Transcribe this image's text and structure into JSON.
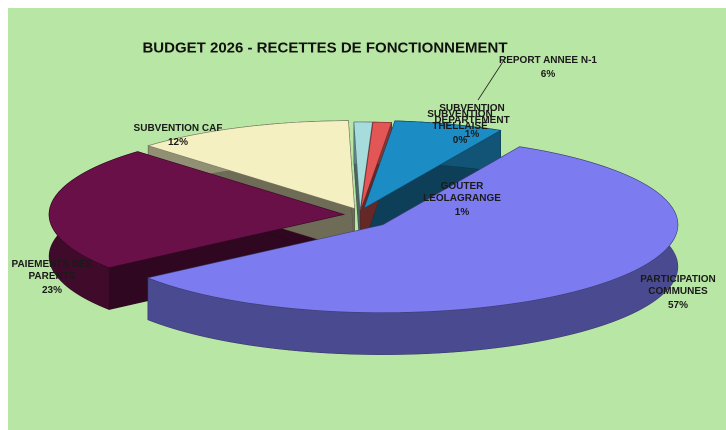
{
  "chart_data": {
    "type": "pie",
    "title": "BUDGET 2026  -  RECETTES DE FONCTIONNEMENT",
    "categories": [
      "REPORT ANNEE N-1",
      "PARTICIPATION COMMUNES",
      "PAIEMENTS DES PARENTS",
      "SUBVENTION CAF",
      "GOUTER LEOLAGRANGE",
      "SUBVENTION THELLAISE",
      "SUBVENTION DEPARTEMENT"
    ],
    "values": [
      6,
      57,
      23,
      12,
      1,
      0,
      1
    ],
    "value_labels": [
      "6%",
      "57%",
      "23%",
      "12%",
      "1%",
      "0%",
      "1%"
    ],
    "colors": [
      "#1c8cc4",
      "#7c7cf0",
      "#6a1048",
      "#f4f0c2",
      "#a6dcdc",
      "#f2a0a0",
      "#e25656"
    ]
  }
}
